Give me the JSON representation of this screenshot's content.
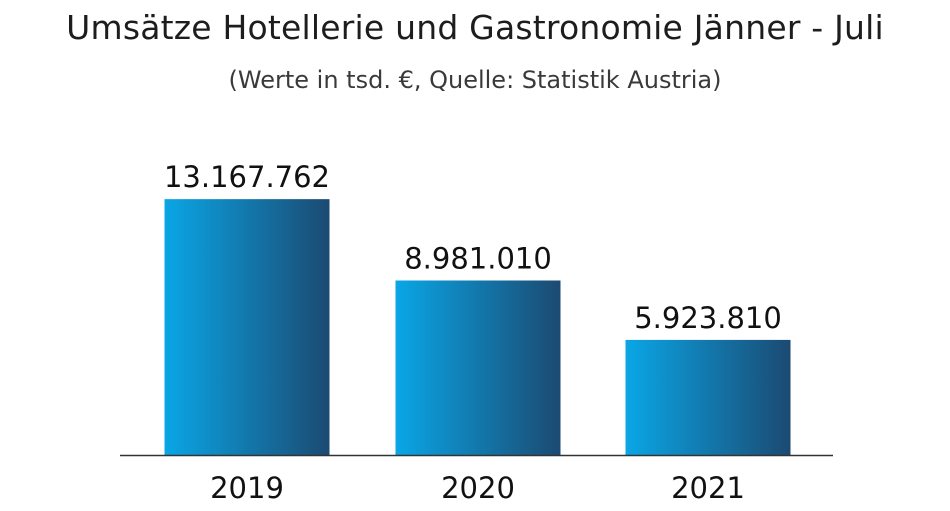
{
  "chart_data": {
    "type": "bar",
    "title": "Umsätze Hotellerie und Gastronomie Jänner - Juli",
    "subtitle": "(Werte in tsd. €, Quelle: Statistik Austria)",
    "categories": [
      "2019",
      "2020",
      "2021"
    ],
    "values": [
      13167762,
      8981010,
      5923810
    ],
    "value_labels": [
      "13.167.762",
      "8.981.010",
      "5.923.810"
    ],
    "xlabel": "",
    "ylabel": "",
    "ylim": [
      0,
      15800000
    ],
    "grid": false,
    "legend": "none",
    "colors": {
      "bar_light": "#0aa6e6",
      "bar_dark": "#1b4a72",
      "axis": "#333333"
    }
  }
}
